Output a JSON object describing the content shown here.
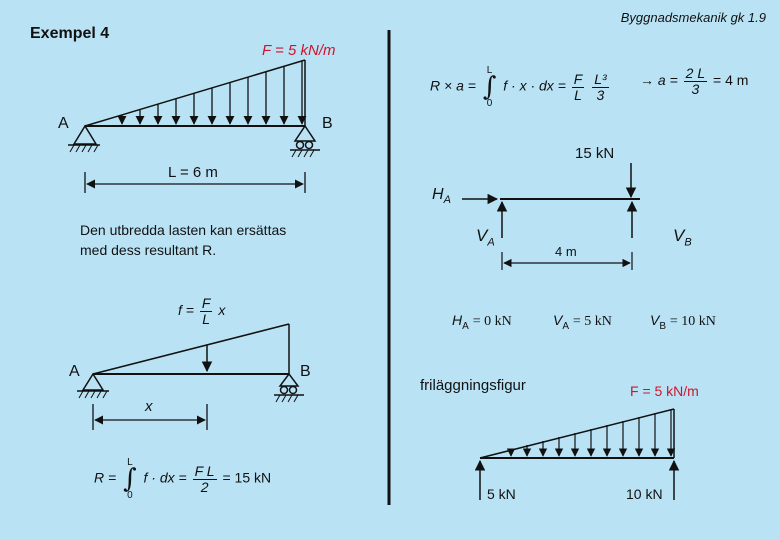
{
  "header": {
    "example": "Exempel 4",
    "course": "Byggnadsmekanik gk  1.9"
  },
  "beam1": {
    "load": "F = 5 kN/m",
    "a": "A",
    "b": "B",
    "length": "L = 6 m"
  },
  "note": {
    "line1": "Den utbredda lasten kan ersättas",
    "line2": "med dess resultant R."
  },
  "beam2": {
    "f_lhs": "f =",
    "f_num": "F",
    "f_den": "L",
    "f_x": "x",
    "a": "A",
    "b": "B",
    "x": "x",
    "R": "R =",
    "int_top": "L",
    "int_bot": "0",
    "integrand": "f · dx =",
    "frac_num": "F L",
    "frac_den": "2",
    "result": "= 15 kN"
  },
  "moment": {
    "lhs": "R × a =",
    "int_top": "L",
    "int_bot": "0",
    "integrand": "f · x · dx =",
    "frac1_num": "F",
    "frac1_den": "L",
    "frac2_num": "L³",
    "frac2_den": "3",
    "arrow": "→",
    "a_lhs": "a =",
    "frac3_num": "2 L",
    "frac3_den": "3",
    "a_res": "= 4 m"
  },
  "freebody": {
    "force": "15 kN",
    "ha": "H",
    "ha_sub": "A",
    "va": "V",
    "va_sub": "A",
    "vb": "V",
    "vb_sub": "B",
    "dist": "4 m"
  },
  "results": [
    {
      "sym": "H",
      "sub": "A",
      "val": "= 0 kN"
    },
    {
      "sym": "V",
      "sub": "A",
      "val": "= 5 kN"
    },
    {
      "sym": "V",
      "sub": "B",
      "val": "= 10 kN"
    }
  ],
  "frilagg": {
    "caption": "friläggningsfigur",
    "load": "F = 5 kN/m",
    "left": "5 kN",
    "right": "10 kN"
  },
  "colors": {
    "background": "#b9e3f5",
    "accent": "#d0142c"
  }
}
